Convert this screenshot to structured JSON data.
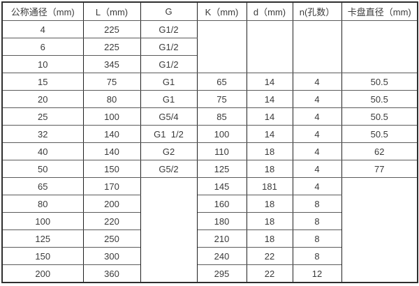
{
  "table": {
    "header": [
      "公称通径（mm)",
      "L（mm)",
      "G",
      "K（mm)",
      "d（mm)",
      "n(孔数）",
      "卡盘直径（mm)"
    ],
    "rows": [
      [
        {
          "v": "4"
        },
        {
          "v": "225"
        },
        {
          "v": "G1/2"
        },
        {
          "v": "",
          "rs": 3
        },
        {
          "v": "",
          "rs": 3
        },
        {
          "v": "",
          "rs": 3
        },
        {
          "v": "",
          "rs": 3
        }
      ],
      [
        {
          "v": "6"
        },
        {
          "v": "225"
        },
        {
          "v": "G1/2"
        }
      ],
      [
        {
          "v": "10"
        },
        {
          "v": "345"
        },
        {
          "v": "G1/2"
        }
      ],
      [
        {
          "v": "15"
        },
        {
          "v": "75"
        },
        {
          "v": "G1"
        },
        {
          "v": "65"
        },
        {
          "v": "14"
        },
        {
          "v": "4"
        },
        {
          "v": "50.5"
        }
      ],
      [
        {
          "v": "20"
        },
        {
          "v": "80"
        },
        {
          "v": "G1"
        },
        {
          "v": "75"
        },
        {
          "v": "14"
        },
        {
          "v": "4"
        },
        {
          "v": "50.5"
        }
      ],
      [
        {
          "v": "25"
        },
        {
          "v": "100"
        },
        {
          "v": "G5/4"
        },
        {
          "v": "85"
        },
        {
          "v": "14"
        },
        {
          "v": "4"
        },
        {
          "v": "50.5"
        }
      ],
      [
        {
          "v": "32"
        },
        {
          "v": "140"
        },
        {
          "v": "G1  1/2"
        },
        {
          "v": "100"
        },
        {
          "v": "14"
        },
        {
          "v": "4"
        },
        {
          "v": "50.5"
        }
      ],
      [
        {
          "v": "40"
        },
        {
          "v": "140"
        },
        {
          "v": "G2"
        },
        {
          "v": "110"
        },
        {
          "v": "18"
        },
        {
          "v": "4"
        },
        {
          "v": "62"
        }
      ],
      [
        {
          "v": "50"
        },
        {
          "v": "150"
        },
        {
          "v": "G5/2"
        },
        {
          "v": "125"
        },
        {
          "v": "18"
        },
        {
          "v": "4"
        },
        {
          "v": "77"
        }
      ],
      [
        {
          "v": "65"
        },
        {
          "v": "170"
        },
        {
          "v": "",
          "rs": 6
        },
        {
          "v": "145"
        },
        {
          "v": "181"
        },
        {
          "v": "4"
        },
        {
          "v": "",
          "rs": 6
        }
      ],
      [
        {
          "v": "80"
        },
        {
          "v": "200"
        },
        {
          "v": "160"
        },
        {
          "v": "18"
        },
        {
          "v": "8"
        }
      ],
      [
        {
          "v": "100"
        },
        {
          "v": "220"
        },
        {
          "v": "180"
        },
        {
          "v": "18"
        },
        {
          "v": "8"
        }
      ],
      [
        {
          "v": "125"
        },
        {
          "v": "250"
        },
        {
          "v": "210"
        },
        {
          "v": "18"
        },
        {
          "v": "8"
        }
      ],
      [
        {
          "v": "150"
        },
        {
          "v": "300"
        },
        {
          "v": "240"
        },
        {
          "v": "22"
        },
        {
          "v": "8"
        }
      ],
      [
        {
          "v": "200"
        },
        {
          "v": "360"
        },
        {
          "v": "295"
        },
        {
          "v": "22"
        },
        {
          "v": "12"
        }
      ]
    ],
    "colors": {
      "text": "#3a3a3a",
      "grid_horizontal": "#5a5a5a",
      "grid_vertical": "#1f1f1f",
      "outer_border": "#2e2e2e",
      "background": "#ffffff"
    }
  }
}
